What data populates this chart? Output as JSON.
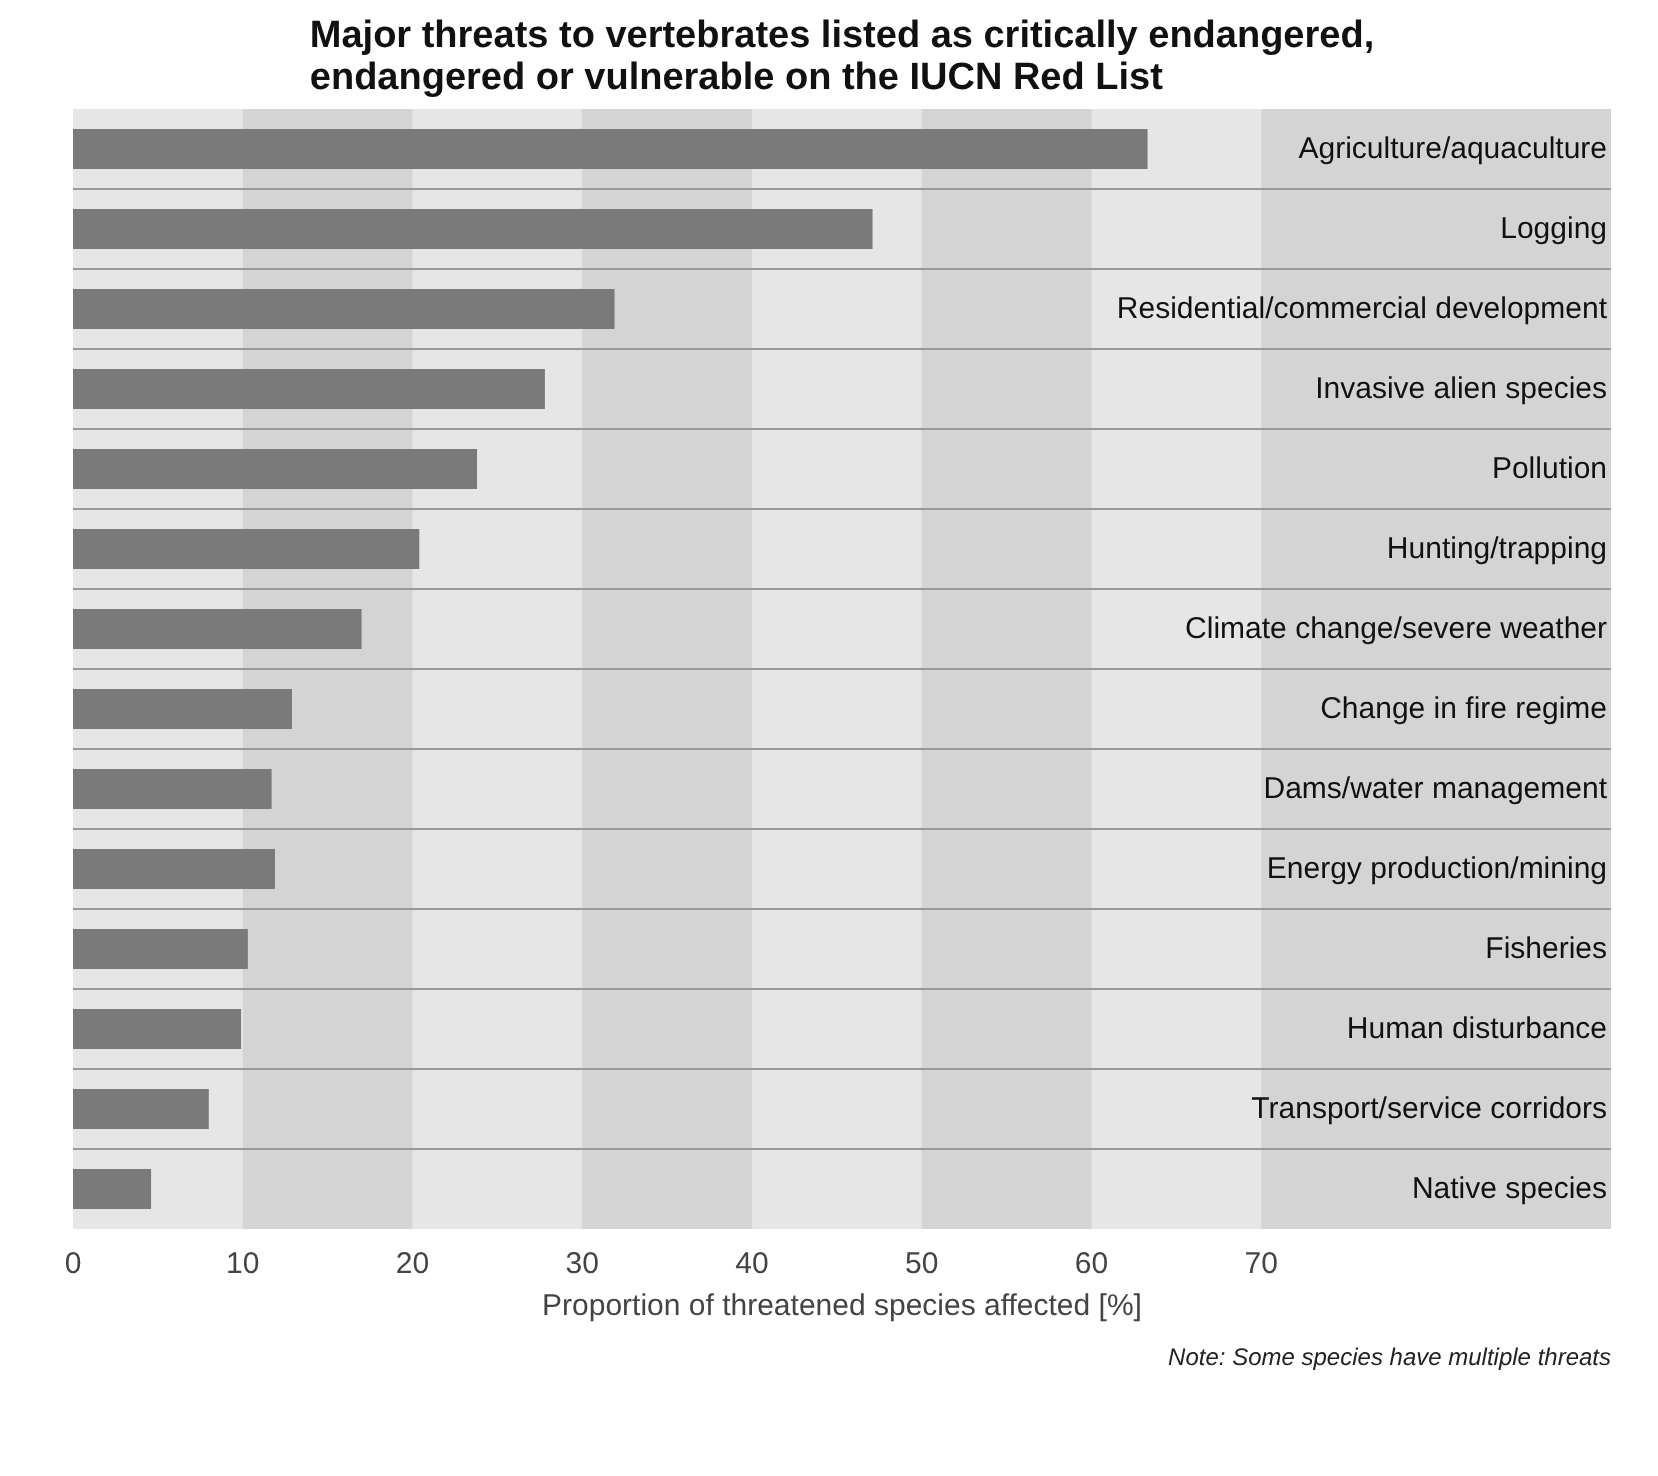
{
  "chart_data": {
    "type": "bar",
    "orientation": "horizontal",
    "title": "Major threats to vertebrates listed as critically endangered, endangered or vulnerable on the IUCN Red List",
    "categories": [
      "Agriculture/aquaculture",
      "Logging",
      "Residential/commercial development",
      "Invasive alien species",
      "Pollution",
      "Hunting/trapping",
      "Climate change/severe weather",
      "Change in fire regime",
      "Dams/water management",
      "Energy production/mining",
      "Fisheries",
      "Human disturbance",
      "Transport/service corridors",
      "Native species"
    ],
    "values": [
      63.3,
      47.1,
      31.9,
      27.8,
      23.8,
      20.4,
      17.0,
      12.9,
      11.7,
      11.9,
      10.3,
      9.9,
      8.0,
      4.6
    ],
    "color": "#7a7a7a",
    "xlim": [
      0,
      90.6
    ],
    "xticks": [
      0,
      10,
      20,
      30,
      40,
      50,
      60,
      70
    ],
    "grid": true,
    "xlabel": "Proportion of threatened species affected [%]",
    "annotations": [
      "Note: Some species have multiple threats"
    ]
  }
}
